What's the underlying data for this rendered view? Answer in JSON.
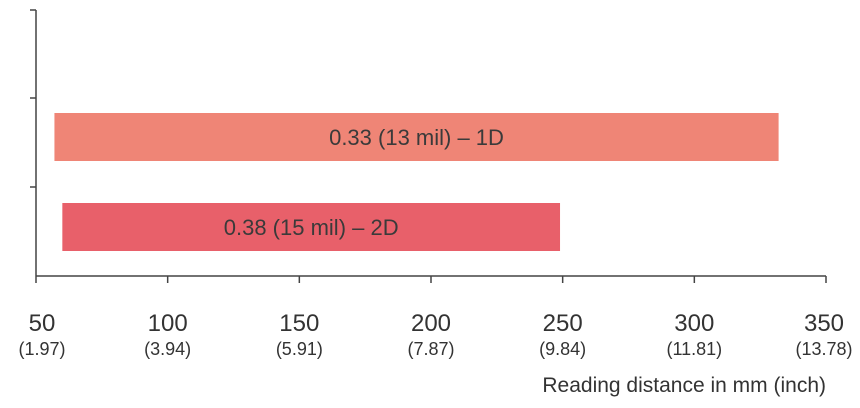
{
  "chart_data": {
    "type": "bar",
    "orientation": "horizontal",
    "title": "",
    "xlabel": "Reading distance in mm (inch)",
    "ylabel": "",
    "xlim": [
      50,
      350
    ],
    "x_ticks": [
      {
        "mm": "50",
        "inch": "(1.97)"
      },
      {
        "mm": "100",
        "inch": "(3.94)"
      },
      {
        "mm": "150",
        "inch": "(5.91)"
      },
      {
        "mm": "200",
        "inch": "(7.87)"
      },
      {
        "mm": "250",
        "inch": "(9.84)"
      },
      {
        "mm": "300",
        "inch": "(11.81)"
      },
      {
        "mm": "350",
        "inch": "(13.78)"
      }
    ],
    "bars": [
      {
        "label": "0.33 (13 mil) – 1D",
        "start": 57,
        "end": 332,
        "color": "#ef8576"
      },
      {
        "label": "0.38 (15 mil) – 2D",
        "start": 60,
        "end": 249,
        "color": "#e8606a"
      }
    ],
    "grid": false,
    "legend": "none"
  }
}
